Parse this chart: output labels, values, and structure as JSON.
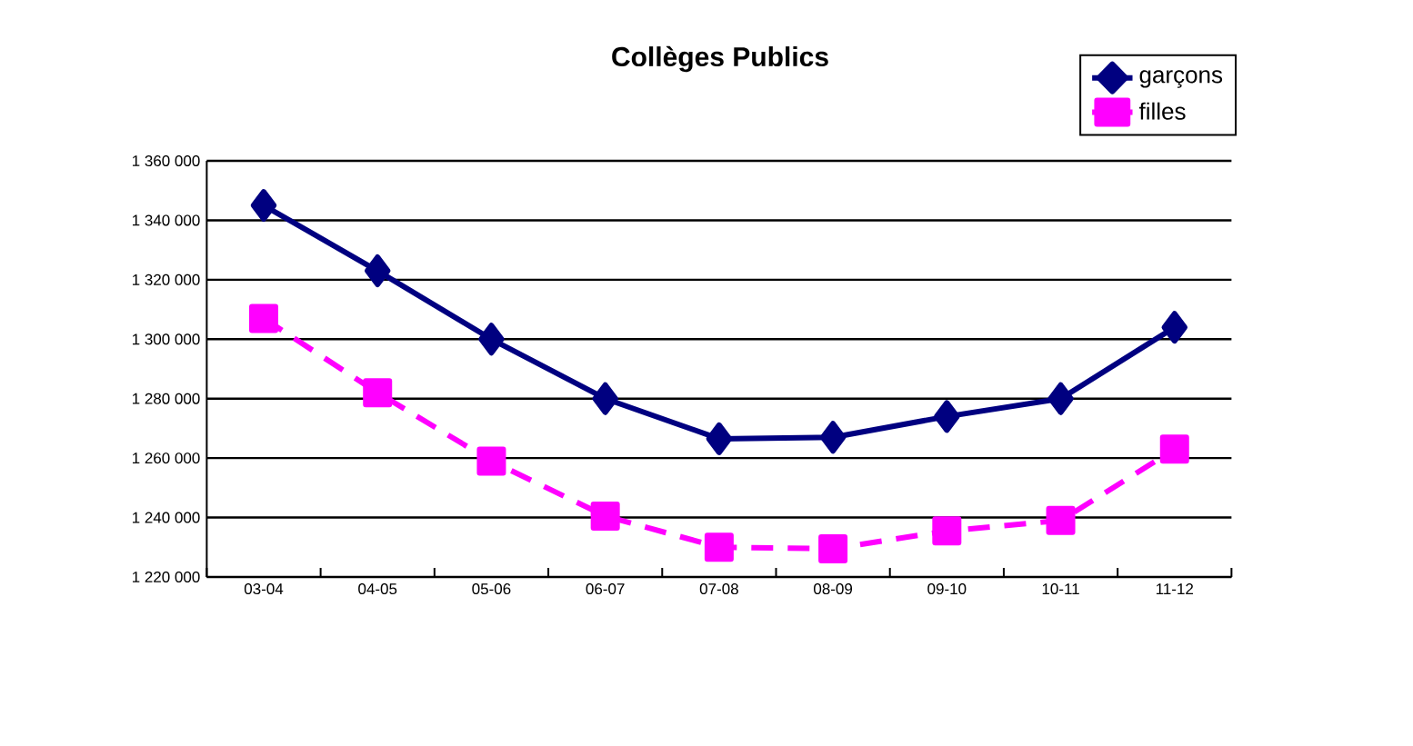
{
  "chart_data": {
    "type": "line",
    "title": "Collèges Publics",
    "categories": [
      "03-04",
      "04-05",
      "05-06",
      "06-07",
      "07-08",
      "08-09",
      "09-10",
      "10-11",
      "11-12"
    ],
    "series": [
      {
        "name": "garçons",
        "color": "#000080",
        "marker": "diamond",
        "line_style": "solid",
        "values": [
          1345000,
          1323000,
          1300000,
          1280000,
          1266500,
          1267000,
          1274000,
          1280000,
          1304000
        ]
      },
      {
        "name": "filles",
        "color": "#ff00ff",
        "marker": "square",
        "line_style": "dashed",
        "values": [
          1307000,
          1282000,
          1259000,
          1240500,
          1230000,
          1229500,
          1235500,
          1239000,
          1263000
        ]
      }
    ],
    "ylim": [
      1220000,
      1360000
    ],
    "yticks": [
      {
        "value": 1220000,
        "label": "1 220 000"
      },
      {
        "value": 1240000,
        "label": "1 240 000"
      },
      {
        "value": 1260000,
        "label": "1 260 000"
      },
      {
        "value": 1280000,
        "label": "1 280 000"
      },
      {
        "value": 1300000,
        "label": "1 300 000"
      },
      {
        "value": 1320000,
        "label": "1 320 000"
      },
      {
        "value": 1340000,
        "label": "1 340 000"
      },
      {
        "value": 1360000,
        "label": "1 360 000"
      }
    ],
    "grid": "y",
    "legend": "top right"
  }
}
